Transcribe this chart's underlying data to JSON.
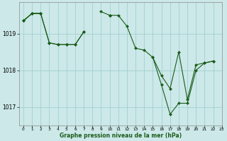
{
  "title": "Graphe pression niveau de la mer (hPa)",
  "bg_color": "#cce8e8",
  "grid_color": "#99cccc",
  "line_color": "#1a5c1a",
  "marker_color": "#1a5c1a",
  "xlim": [
    -0.5,
    23
  ],
  "ylim": [
    1016.5,
    1019.85
  ],
  "yticks": [
    1017,
    1018,
    1019
  ],
  "xticks": [
    0,
    1,
    2,
    3,
    4,
    5,
    6,
    7,
    8,
    9,
    10,
    11,
    12,
    13,
    14,
    15,
    16,
    17,
    18,
    19,
    20,
    21,
    22,
    23
  ],
  "series": [
    [
      1019.35,
      1019.55,
      1019.55,
      null,
      null,
      null,
      null,
      null,
      null,
      null,
      1019.5,
      null,
      null,
      null,
      null,
      null,
      null,
      null,
      null,
      null,
      null,
      null,
      null,
      null
    ],
    [
      1019.35,
      1019.55,
      1019.55,
      1018.75,
      1018.7,
      1018.7,
      1018.7,
      1019.05,
      null,
      1019.6,
      1019.5,
      1019.5,
      1019.2,
      1018.6,
      1018.55,
      1018.35,
      1017.85,
      1017.5,
      1018.5,
      1017.2,
      1018.15,
      1018.2,
      1018.25,
      null
    ],
    [
      1019.35,
      1019.55,
      1019.55,
      1018.75,
      1018.7,
      1018.7,
      1018.7,
      1019.05,
      null,
      null,
      1019.5,
      null,
      null,
      null,
      null,
      1018.35,
      1017.6,
      1016.8,
      1017.1,
      1017.1,
      1018.0,
      1018.2,
      1018.25,
      null
    ]
  ]
}
